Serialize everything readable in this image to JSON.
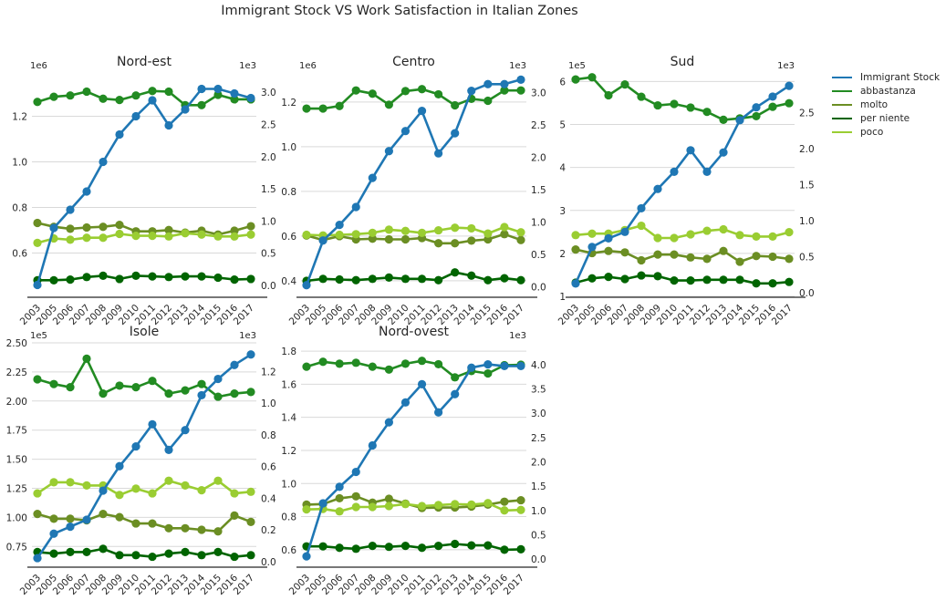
{
  "figure": {
    "title": "Immigrant Stock VS Work Satisfaction in Italian Zones"
  },
  "legend": [
    {
      "label": "Immigrant Stock",
      "color": "#1f77b4"
    },
    {
      "label": "abbastanza",
      "color": "#228b22"
    },
    {
      "label": "molto",
      "color": "#6b8e23"
    },
    {
      "label": "per niente",
      "color": "#006400"
    },
    {
      "label": "poco",
      "color": "#9acd32"
    }
  ],
  "chart_data": [
    {
      "type": "line",
      "title": "Nord-est",
      "x": [
        "2003",
        "2005",
        "2006",
        "2007",
        "2008",
        "2009",
        "2010",
        "2011",
        "2012",
        "2013",
        "2014",
        "2015",
        "2016",
        "2017"
      ],
      "left_axis": {
        "offset_label": "1e6",
        "ticks": [
          "0.6",
          "0.8",
          "1.0",
          "1.2"
        ],
        "tick_values": [
          0.6,
          0.8,
          1.0,
          1.2
        ],
        "ylim": [
          0.41,
          1.39
        ]
      },
      "right_axis": {
        "offset_label": "1e3",
        "ticks": [
          "0.0",
          "0.5",
          "1.0",
          "1.5",
          "2.0",
          "2.5",
          "3.0"
        ],
        "tick_values": [
          0,
          0.5,
          1.0,
          1.5,
          2.0,
          2.5,
          3.0
        ],
        "ylim": [
          -0.17,
          3.3
        ]
      },
      "series": [
        {
          "name": "Immigrant Stock",
          "axis": "left",
          "values": [
            0.46,
            0.71,
            0.79,
            0.87,
            1.0,
            1.12,
            1.2,
            1.27,
            1.16,
            1.23,
            1.32,
            1.32,
            1.3,
            1.28
          ]
        },
        {
          "name": "abbastanza",
          "axis": "right",
          "values": [
            2.85,
            2.93,
            2.95,
            3.01,
            2.9,
            2.88,
            2.95,
            3.02,
            3.01,
            2.8,
            2.8,
            2.96,
            2.89,
            2.89
          ]
        },
        {
          "name": "molto",
          "axis": "right",
          "values": [
            0.97,
            0.91,
            0.88,
            0.9,
            0.91,
            0.94,
            0.84,
            0.84,
            0.86,
            0.82,
            0.85,
            0.79,
            0.85,
            0.92
          ]
        },
        {
          "name": "per niente",
          "axis": "right",
          "values": [
            0.08,
            0.08,
            0.09,
            0.13,
            0.15,
            0.1,
            0.15,
            0.14,
            0.13,
            0.14,
            0.14,
            0.12,
            0.09,
            0.1
          ]
        },
        {
          "name": "poco",
          "axis": "right",
          "values": [
            0.66,
            0.73,
            0.71,
            0.74,
            0.74,
            0.8,
            0.77,
            0.77,
            0.76,
            0.81,
            0.79,
            0.76,
            0.76,
            0.79
          ]
        }
      ]
    },
    {
      "type": "line",
      "title": "Centro",
      "x": [
        "2003",
        "2005",
        "2006",
        "2007",
        "2008",
        "2009",
        "2010",
        "2011",
        "2012",
        "2013",
        "2014",
        "2015",
        "2016",
        "2017"
      ],
      "left_axis": {
        "offset_label": "1e6",
        "ticks": [
          "0.4",
          "0.6",
          "0.8",
          "1.0",
          "1.2"
        ],
        "tick_values": [
          0.4,
          0.6,
          0.8,
          1.0,
          1.2
        ],
        "ylim": [
          0.33,
          1.33
        ]
      },
      "right_axis": {
        "offset_label": "1e3",
        "ticks": [
          "0.0",
          "0.5",
          "1.0",
          "1.5",
          "2.0",
          "2.5",
          "3.0"
        ],
        "tick_values": [
          0,
          0.5,
          1.0,
          1.5,
          2.0,
          2.5,
          3.0
        ],
        "ylim": [
          -0.15,
          3.3
        ]
      },
      "series": [
        {
          "name": "Immigrant Stock",
          "axis": "left",
          "values": [
            0.38,
            0.58,
            0.65,
            0.73,
            0.86,
            0.98,
            1.07,
            1.16,
            0.97,
            1.06,
            1.25,
            1.28,
            1.28,
            1.3
          ]
        },
        {
          "name": "abbastanza",
          "axis": "right",
          "values": [
            2.75,
            2.75,
            2.79,
            3.03,
            2.98,
            2.81,
            3.02,
            3.05,
            2.97,
            2.8,
            2.9,
            2.87,
            3.03,
            3.03
          ]
        },
        {
          "name": "molto",
          "axis": "right",
          "values": [
            0.79,
            0.72,
            0.78,
            0.73,
            0.74,
            0.73,
            0.73,
            0.75,
            0.67,
            0.67,
            0.71,
            0.73,
            0.81,
            0.72
          ]
        },
        {
          "name": "per niente",
          "axis": "right",
          "values": [
            0.09,
            0.12,
            0.11,
            0.1,
            0.12,
            0.14,
            0.12,
            0.12,
            0.1,
            0.22,
            0.17,
            0.1,
            0.13,
            0.1
          ]
        },
        {
          "name": "poco",
          "axis": "right",
          "values": [
            0.8,
            0.79,
            0.8,
            0.81,
            0.83,
            0.88,
            0.86,
            0.83,
            0.87,
            0.91,
            0.9,
            0.82,
            0.92,
            0.84
          ]
        }
      ]
    },
    {
      "type": "line",
      "title": "Sud",
      "x": [
        "2003",
        "2005",
        "2006",
        "2007",
        "2008",
        "2009",
        "2010",
        "2011",
        "2012",
        "2013",
        "2014",
        "2015",
        "2016",
        "2017"
      ],
      "left_axis": {
        "offset_label": "1e5",
        "ticks": [
          "1",
          "2",
          "3",
          "4",
          "5",
          "6"
        ],
        "tick_values": [
          1,
          2,
          3,
          4,
          5,
          6
        ],
        "ylim": [
          1.0,
          6.2
        ]
      },
      "right_axis": {
        "offset_label": "1e3",
        "ticks": [
          "0.0",
          "0.5",
          "1.0",
          "1.5",
          "2.0",
          "2.5"
        ],
        "tick_values": [
          0,
          0.5,
          1.0,
          1.5,
          2.0,
          2.5
        ],
        "ylim": [
          -0.05,
          3.05
        ]
      },
      "series": [
        {
          "name": "Immigrant Stock",
          "axis": "left",
          "values": [
            1.3,
            2.15,
            2.35,
            2.5,
            3.05,
            3.5,
            3.9,
            4.4,
            3.9,
            4.35,
            5.1,
            5.4,
            5.65,
            5.9
          ]
        },
        {
          "name": "abbastanza",
          "axis": "right",
          "values": [
            2.96,
            2.99,
            2.74,
            2.89,
            2.72,
            2.6,
            2.62,
            2.57,
            2.51,
            2.4,
            2.42,
            2.45,
            2.58,
            2.63
          ]
        },
        {
          "name": "molto",
          "axis": "right",
          "values": [
            0.6,
            0.55,
            0.58,
            0.56,
            0.45,
            0.53,
            0.53,
            0.49,
            0.47,
            0.58,
            0.43,
            0.51,
            0.5,
            0.47
          ]
        },
        {
          "name": "per niente",
          "axis": "right",
          "values": [
            0.14,
            0.2,
            0.22,
            0.19,
            0.24,
            0.23,
            0.17,
            0.17,
            0.18,
            0.18,
            0.18,
            0.13,
            0.13,
            0.15
          ]
        },
        {
          "name": "poco",
          "axis": "right",
          "values": [
            0.8,
            0.82,
            0.82,
            0.87,
            0.93,
            0.76,
            0.76,
            0.81,
            0.86,
            0.88,
            0.8,
            0.78,
            0.78,
            0.84
          ]
        }
      ]
    },
    {
      "type": "line",
      "title": "Isole",
      "x": [
        "2003",
        "2005",
        "2006",
        "2007",
        "2008",
        "2009",
        "2010",
        "2011",
        "2012",
        "2013",
        "2014",
        "2015",
        "2016",
        "2017"
      ],
      "left_axis": {
        "offset_label": "1e5",
        "ticks": [
          "0.75",
          "1.00",
          "1.25",
          "1.50",
          "1.75",
          "2.00",
          "2.25",
          "2.50"
        ],
        "tick_values": [
          0.75,
          1.0,
          1.25,
          1.5,
          1.75,
          2.0,
          2.25,
          2.5
        ],
        "ylim": [
          0.58,
          2.5
        ]
      },
      "right_axis": {
        "offset_label": "1e3",
        "ticks": [
          "0.0",
          "0.2",
          "0.4",
          "0.6",
          "0.8",
          "1.0",
          "1.2"
        ],
        "tick_values": [
          0,
          0.2,
          0.4,
          0.6,
          0.8,
          1.0,
          1.2
        ],
        "ylim": [
          -0.03,
          1.38
        ]
      },
      "series": [
        {
          "name": "Immigrant Stock",
          "axis": "left",
          "values": [
            0.65,
            0.86,
            0.92,
            0.98,
            1.23,
            1.44,
            1.61,
            1.8,
            1.58,
            1.75,
            2.05,
            2.19,
            2.31,
            2.4
          ]
        },
        {
          "name": "abbastanza",
          "axis": "right",
          "values": [
            1.15,
            1.12,
            1.1,
            1.28,
            1.06,
            1.11,
            1.1,
            1.14,
            1.06,
            1.08,
            1.12,
            1.04,
            1.06,
            1.07
          ]
        },
        {
          "name": "molto",
          "axis": "right",
          "values": [
            0.3,
            0.27,
            0.27,
            0.26,
            0.3,
            0.28,
            0.24,
            0.24,
            0.21,
            0.21,
            0.2,
            0.19,
            0.29,
            0.25
          ]
        },
        {
          "name": "per niente",
          "axis": "right",
          "values": [
            0.06,
            0.05,
            0.06,
            0.06,
            0.08,
            0.04,
            0.04,
            0.03,
            0.05,
            0.06,
            0.04,
            0.06,
            0.03,
            0.04
          ]
        },
        {
          "name": "poco",
          "axis": "right",
          "values": [
            0.43,
            0.5,
            0.5,
            0.48,
            0.48,
            0.42,
            0.46,
            0.43,
            0.51,
            0.48,
            0.45,
            0.51,
            0.43,
            0.44
          ]
        }
      ]
    },
    {
      "type": "line",
      "title": "Nord-ovest",
      "x": [
        "2003",
        "2005",
        "2006",
        "2007",
        "2008",
        "2009",
        "2010",
        "2011",
        "2012",
        "2013",
        "2014",
        "2015",
        "2016",
        "2017"
      ],
      "left_axis": {
        "offset_label": "",
        "ticks": [
          "0.6",
          "0.8",
          "1.0",
          "1.2",
          "1.4",
          "1.6",
          "1.8"
        ],
        "tick_values": [
          0.6,
          0.8,
          1.0,
          1.2,
          1.4,
          1.6,
          1.8
        ],
        "ylim": [
          0.5,
          1.85
        ]
      },
      "right_axis": {
        "offset_label": "1e3",
        "ticks": [
          "0.0",
          "0.5",
          "1.0",
          "1.5",
          "2.0",
          "2.5",
          "3.0",
          "3.5",
          "4.0"
        ],
        "tick_values": [
          0,
          0.5,
          1.0,
          1.5,
          2.0,
          2.5,
          3.0,
          3.5,
          4.0
        ],
        "ylim": [
          -0.15,
          4.45
        ]
      },
      "series": [
        {
          "name": "Immigrant Stock",
          "axis": "left",
          "values": [
            0.56,
            0.88,
            0.98,
            1.07,
            1.23,
            1.37,
            1.49,
            1.6,
            1.43,
            1.54,
            1.7,
            1.72,
            1.71,
            1.71
          ]
        },
        {
          "name": "abbastanza",
          "axis": "right",
          "values": [
            3.96,
            4.06,
            4.02,
            4.04,
            3.96,
            3.9,
            4.02,
            4.08,
            4.01,
            3.74,
            3.87,
            3.82,
            3.99,
            4.0
          ]
        },
        {
          "name": "molto",
          "axis": "right",
          "values": [
            1.12,
            1.13,
            1.25,
            1.29,
            1.16,
            1.24,
            1.14,
            1.05,
            1.06,
            1.06,
            1.08,
            1.12,
            1.18,
            1.21
          ]
        },
        {
          "name": "per niente",
          "axis": "right",
          "values": [
            0.26,
            0.26,
            0.23,
            0.21,
            0.27,
            0.25,
            0.27,
            0.23,
            0.27,
            0.31,
            0.28,
            0.28,
            0.19,
            0.2
          ]
        },
        {
          "name": "poco",
          "axis": "right",
          "values": [
            1.02,
            1.03,
            0.98,
            1.07,
            1.07,
            1.09,
            1.13,
            1.09,
            1.11,
            1.13,
            1.12,
            1.15,
            1.0,
            1.01
          ]
        }
      ]
    }
  ]
}
